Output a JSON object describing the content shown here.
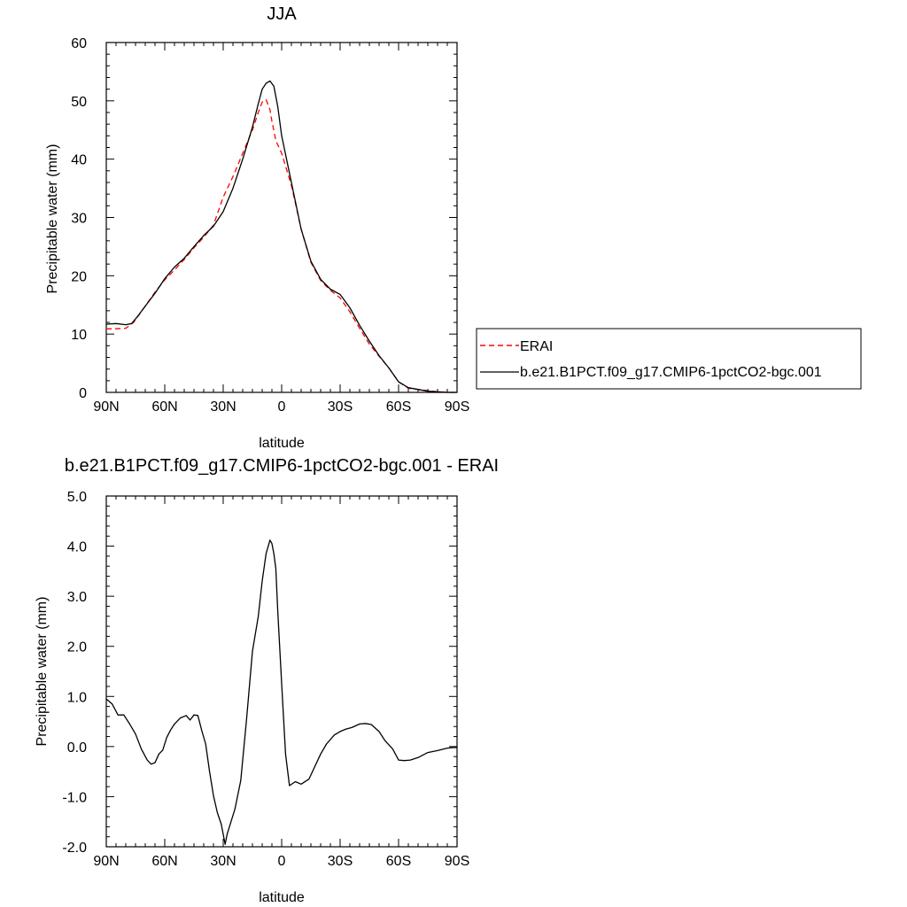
{
  "chart_data": [
    {
      "type": "line",
      "title": "JJA",
      "xlabel": "latitude",
      "ylabel": "Precipitable water (mm)",
      "xlim": [
        90,
        -90
      ],
      "ylim": [
        0,
        60
      ],
      "xticks": [
        90,
        60,
        30,
        0,
        -30,
        -60,
        -90
      ],
      "xtick_labels": [
        "90N",
        "60N",
        "30N",
        "0",
        "30S",
        "60S",
        "90S"
      ],
      "yticks": [
        0,
        10,
        20,
        30,
        40,
        50,
        60
      ],
      "ytick_labels": [
        "0",
        "10",
        "20",
        "30",
        "40",
        "50",
        "60"
      ],
      "grid": false,
      "legend_position": "right",
      "series": [
        {
          "name": "ERAI",
          "color": "#ff0000",
          "style": "dashed",
          "x": [
            90,
            85,
            80,
            76,
            70,
            65,
            60,
            55,
            50,
            45,
            40,
            35,
            30,
            25,
            20,
            15,
            12,
            10,
            8,
            6,
            5,
            3,
            0,
            -5,
            -10,
            -15,
            -20,
            -25,
            -30,
            -35,
            -40,
            -45,
            -50,
            -55,
            -60,
            -65,
            -70,
            -75,
            -80,
            -85,
            -90
          ],
          "y": [
            10.9,
            10.9,
            11.0,
            12.0,
            14.8,
            17.2,
            19.3,
            21.0,
            22.8,
            24.8,
            26.6,
            28.7,
            33.5,
            37.0,
            41.0,
            45.0,
            48.0,
            49.8,
            50.2,
            48.5,
            46.5,
            43.2,
            41.0,
            35.5,
            28.0,
            22.3,
            19.2,
            17.5,
            16.2,
            13.8,
            11.0,
            8.3,
            6.2,
            4.2,
            1.8,
            0.7,
            0.5,
            0.3,
            0.1,
            0.0,
            0.0
          ]
        },
        {
          "name": "b.e21.B1PCT.f09_g17.CMIP6-1pctCO2-bgc.001",
          "color": "#000000",
          "style": "solid",
          "x": [
            90,
            85,
            80,
            77,
            74,
            70,
            65,
            60,
            55,
            50,
            45,
            40,
            35,
            30,
            25,
            20,
            15,
            12,
            10,
            8,
            6,
            4,
            2,
            0,
            -5,
            -10,
            -15,
            -20,
            -25,
            -30,
            -35,
            -40,
            -45,
            -50,
            -55,
            -60,
            -65,
            -70,
            -75,
            -80,
            -85,
            -90
          ],
          "y": [
            11.7,
            11.8,
            11.6,
            11.8,
            13.0,
            14.8,
            17.0,
            19.5,
            21.5,
            23.0,
            25.0,
            26.9,
            28.5,
            31.0,
            35.0,
            40.0,
            45.5,
            49.5,
            52.0,
            53.0,
            53.4,
            52.5,
            49.0,
            44.0,
            36.0,
            28.0,
            22.5,
            19.4,
            17.7,
            16.8,
            14.5,
            11.5,
            8.8,
            6.3,
            4.2,
            1.8,
            0.8,
            0.5,
            0.2,
            0.1,
            0.0,
            0.0
          ]
        }
      ]
    },
    {
      "type": "line",
      "title": "b.e21.B1PCT.f09_g17.CMIP6-1pctCO2-bgc.001 - ERAI",
      "xlabel": "latitude",
      "ylabel": "Precipitable water (mm)",
      "xlim": [
        90,
        -90
      ],
      "ylim": [
        -2.0,
        5.0
      ],
      "xticks": [
        90,
        60,
        30,
        0,
        -30,
        -60,
        -90
      ],
      "xtick_labels": [
        "90N",
        "60N",
        "30N",
        "0",
        "30S",
        "60S",
        "90S"
      ],
      "yticks": [
        -2.0,
        -1.0,
        0.0,
        1.0,
        2.0,
        3.0,
        4.0,
        5.0
      ],
      "ytick_labels": [
        "-2.0",
        "-1.0",
        "0.0",
        "1.0",
        "2.0",
        "3.0",
        "4.0",
        "5.0"
      ],
      "grid": false,
      "series": [
        {
          "color": "#000000",
          "style": "solid",
          "x": [
            90,
            87,
            84,
            81,
            78,
            75,
            72,
            69,
            67,
            65,
            63,
            61,
            59,
            57,
            55,
            52,
            49,
            47,
            45,
            43,
            41,
            39,
            37,
            35,
            33,
            31,
            29,
            28,
            26,
            24,
            21,
            18,
            15,
            12,
            10,
            8,
            6,
            5,
            4,
            3,
            2,
            0,
            -2,
            -4,
            -7,
            -10,
            -14,
            -17,
            -20,
            -23,
            -27,
            -30,
            -33,
            -36,
            -40,
            -43,
            -46,
            -50,
            -53,
            -57,
            -60,
            -63,
            -66,
            -70,
            -75,
            -80,
            -85,
            -88,
            -90
          ],
          "y": [
            0.95,
            0.85,
            0.63,
            0.63,
            0.45,
            0.25,
            -0.05,
            -0.27,
            -0.35,
            -0.32,
            -0.15,
            -0.07,
            0.18,
            0.33,
            0.45,
            0.57,
            0.62,
            0.53,
            0.63,
            0.62,
            0.32,
            0.05,
            -0.5,
            -0.98,
            -1.32,
            -1.55,
            -1.95,
            -1.75,
            -1.5,
            -1.25,
            -0.68,
            0.55,
            1.9,
            2.6,
            3.3,
            3.85,
            4.12,
            4.05,
            3.85,
            3.55,
            2.7,
            1.25,
            -0.15,
            -0.78,
            -0.7,
            -0.75,
            -0.65,
            -0.4,
            -0.15,
            0.05,
            0.23,
            0.3,
            0.35,
            0.38,
            0.45,
            0.46,
            0.44,
            0.3,
            0.12,
            -0.05,
            -0.27,
            -0.28,
            -0.27,
            -0.22,
            -0.12,
            -0.08,
            -0.03,
            -0.02,
            -0.02
          ]
        }
      ]
    }
  ]
}
